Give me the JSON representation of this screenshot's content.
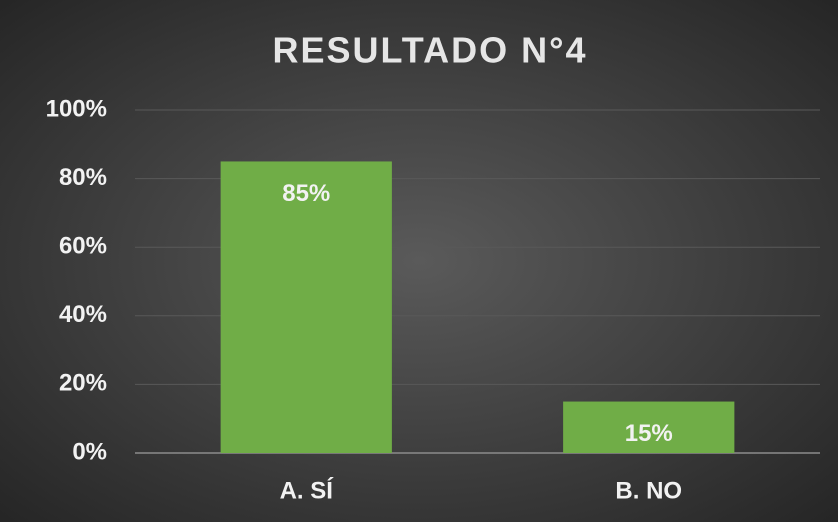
{
  "chart_data": {
    "type": "bar",
    "title": "RESULTADO N°4",
    "categories": [
      "A. SÍ",
      "B. NO"
    ],
    "values": [
      85,
      15
    ],
    "value_labels": [
      "85%",
      "15%"
    ],
    "color": "#70ad47",
    "ylim": [
      0,
      100
    ],
    "yticks": [
      {
        "value": 0,
        "label": "0%"
      },
      {
        "value": 20,
        "label": "20%"
      },
      {
        "value": 40,
        "label": "40%"
      },
      {
        "value": 60,
        "label": "60%"
      },
      {
        "value": 80,
        "label": "80%"
      },
      {
        "value": 100,
        "label": "100%"
      }
    ],
    "grid": true
  }
}
